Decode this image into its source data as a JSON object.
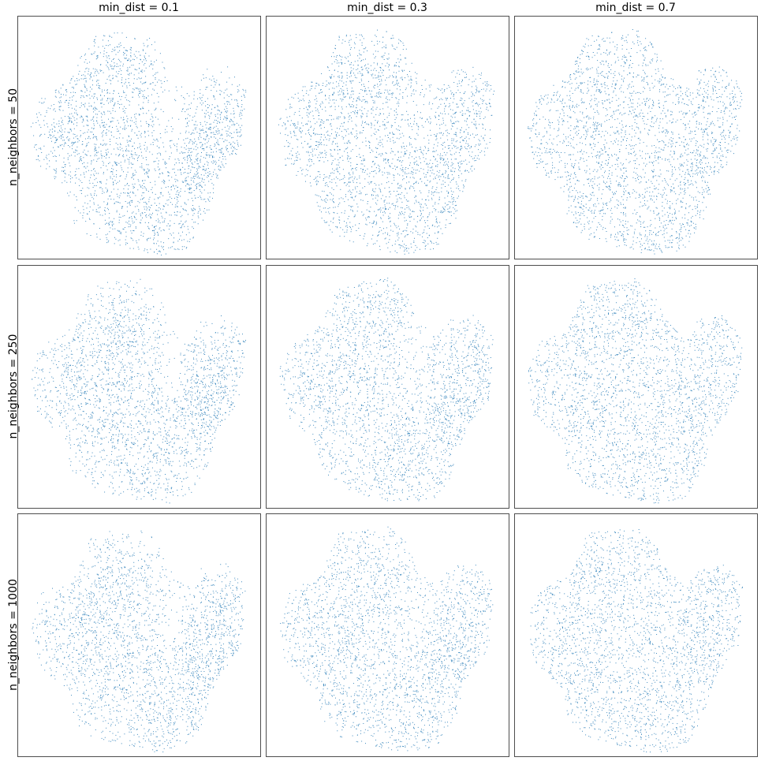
{
  "figure": {
    "col_titles": [
      "min_dist = 0.1",
      "min_dist = 0.3",
      "min_dist = 0.7"
    ],
    "row_titles": [
      "n_neighbors = 50",
      "n_neighbors = 250",
      "n_neighbors = 1000"
    ]
  },
  "chart_data": {
    "type": "scatter",
    "layout": "3x3 grid of UMAP embeddings",
    "axes_visible": false,
    "grid": false,
    "legend": "none",
    "point_color": "#1f77b4",
    "panels": [
      {
        "row": 0,
        "col": 0,
        "n_neighbors": 50,
        "min_dist": 0.1
      },
      {
        "row": 0,
        "col": 1,
        "n_neighbors": 50,
        "min_dist": 0.3
      },
      {
        "row": 0,
        "col": 2,
        "n_neighbors": 50,
        "min_dist": 0.7
      },
      {
        "row": 1,
        "col": 0,
        "n_neighbors": 250,
        "min_dist": 0.1
      },
      {
        "row": 1,
        "col": 1,
        "n_neighbors": 250,
        "min_dist": 0.3
      },
      {
        "row": 1,
        "col": 2,
        "n_neighbors": 250,
        "min_dist": 0.7
      },
      {
        "row": 2,
        "col": 0,
        "n_neighbors": 1000,
        "min_dist": 0.1
      },
      {
        "row": 2,
        "col": 1,
        "n_neighbors": 1000,
        "min_dist": 0.3
      },
      {
        "row": 2,
        "col": 2,
        "n_neighbors": 1000,
        "min_dist": 0.7
      }
    ]
  }
}
